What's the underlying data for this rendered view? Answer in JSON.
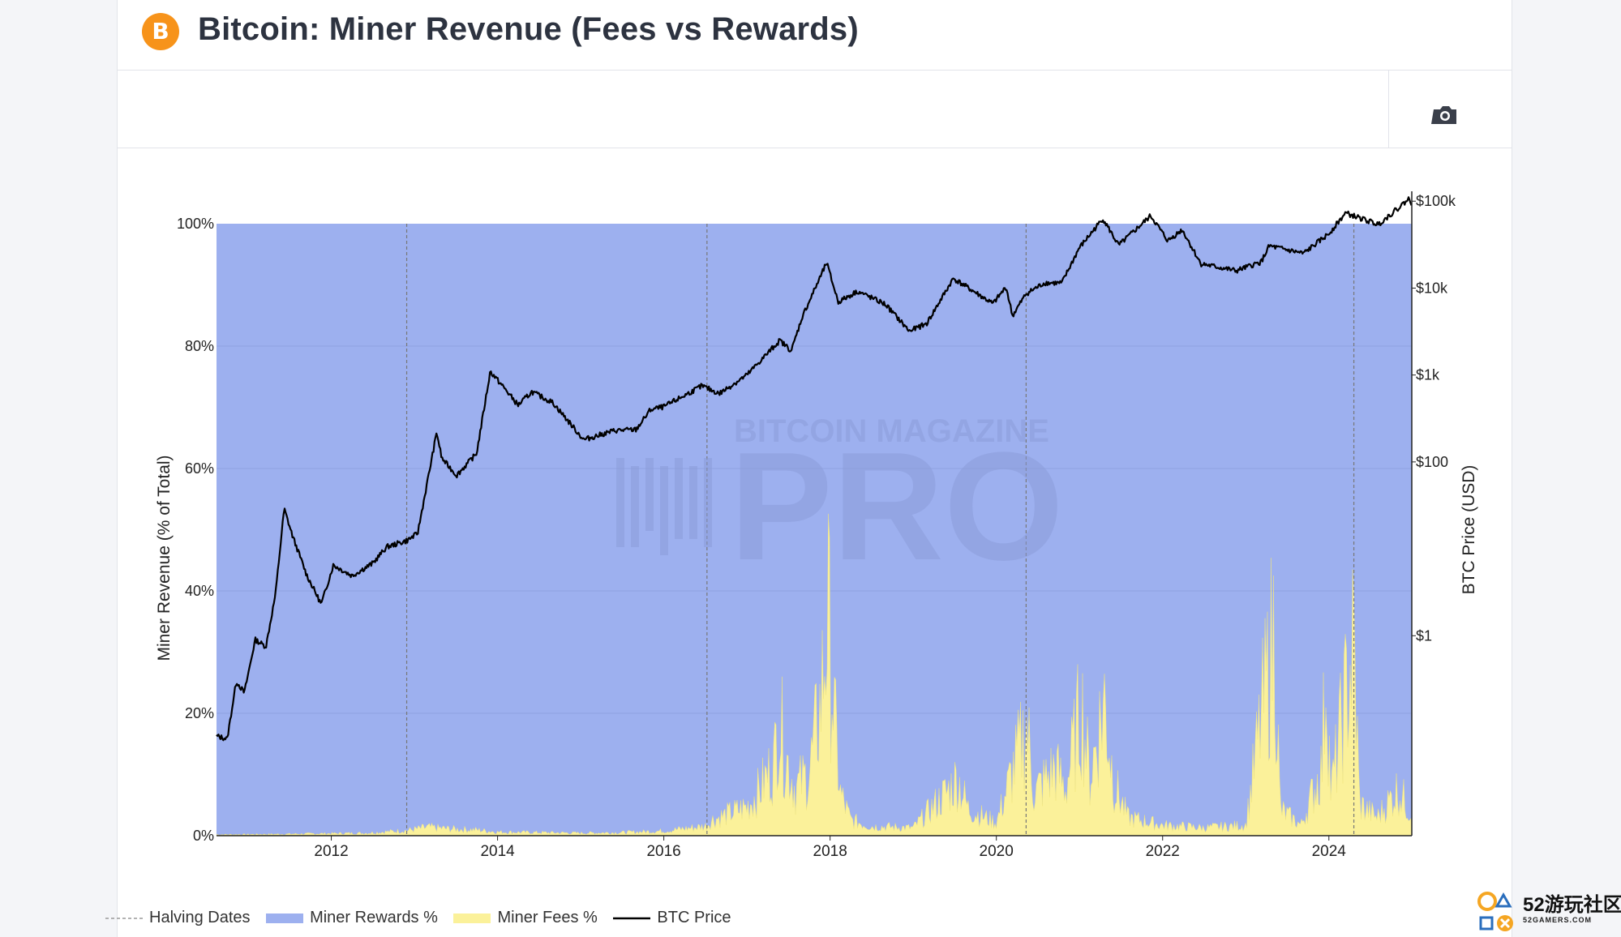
{
  "header": {
    "logo_symbol": "B",
    "title": "Bitcoin: Miner Revenue (Fees vs Rewards)"
  },
  "toolbar": {
    "camera_icon": "camera-icon"
  },
  "colors": {
    "rewards": "#9db0ef",
    "fees": "#fbf19a",
    "price": "#000000",
    "halving": "#777777",
    "brand": "#f7931a"
  },
  "chart_data": {
    "type": "area",
    "xlabel": "",
    "ylabel_left": "Miner Revenue (% of Total)",
    "ylabel_right": "BTC Price (USD)",
    "x_range": [
      "2010-08-15",
      "2024-12-31"
    ],
    "y_left_range": [
      0,
      100
    ],
    "y_right_log_range": [
      0.005,
      130000
    ],
    "x_ticks": [
      "2012",
      "2014",
      "2016",
      "2018",
      "2020",
      "2022",
      "2024"
    ],
    "y_left_ticks": [
      "0%",
      "20%",
      "40%",
      "60%",
      "80%",
      "100%"
    ],
    "y_right_ticks": [
      {
        "label": "$1",
        "value": 1
      },
      {
        "label": "$100",
        "value": 100
      },
      {
        "label": "$1k",
        "value": 1000
      },
      {
        "label": "$10k",
        "value": 10000
      },
      {
        "label": "$100k",
        "value": 100000
      }
    ],
    "halving_dates": [
      "2012-11-28",
      "2016-07-09",
      "2020-05-11",
      "2024-04-20"
    ],
    "legend": [
      "Halving Dates",
      "Miner Rewards %",
      "Miner Fees %",
      "BTC Price"
    ],
    "series": [
      {
        "name": "Miner Fees %",
        "note_points": "approximate date, percent",
        "points": [
          [
            "2010-08-15",
            0.2
          ],
          [
            "2011-06-01",
            0.3
          ],
          [
            "2012-06-01",
            0.5
          ],
          [
            "2012-12-01",
            1.0
          ],
          [
            "2013-03-01",
            1.6
          ],
          [
            "2013-06-01",
            1.3
          ],
          [
            "2013-10-01",
            1.1
          ],
          [
            "2014-01-01",
            0.7
          ],
          [
            "2015-01-01",
            0.5
          ],
          [
            "2015-07-01",
            0.6
          ],
          [
            "2016-01-01",
            0.9
          ],
          [
            "2016-07-01",
            1.8
          ],
          [
            "2016-08-01",
            3.0
          ],
          [
            "2017-01-01",
            5.5
          ],
          [
            "2017-03-01",
            9.0
          ],
          [
            "2017-05-01",
            14.0
          ],
          [
            "2017-05-20",
            24.0
          ],
          [
            "2017-06-15",
            16.0
          ],
          [
            "2017-08-01",
            9.0
          ],
          [
            "2017-10-01",
            12.0
          ],
          [
            "2017-11-20",
            25.0
          ],
          [
            "2017-12-22",
            43.0
          ],
          [
            "2018-01-20",
            22.0
          ],
          [
            "2018-02-15",
            8.0
          ],
          [
            "2018-04-01",
            3.0
          ],
          [
            "2018-07-01",
            1.8
          ],
          [
            "2019-01-01",
            1.5
          ],
          [
            "2019-06-01",
            8.5
          ],
          [
            "2019-07-15",
            11.0
          ],
          [
            "2019-09-01",
            5.0
          ],
          [
            "2020-01-01",
            2.5
          ],
          [
            "2020-05-15",
            21.0
          ],
          [
            "2020-06-15",
            8.0
          ],
          [
            "2020-09-15",
            13.0
          ],
          [
            "2020-11-01",
            9.0
          ],
          [
            "2021-01-10",
            25.0
          ],
          [
            "2021-02-15",
            11.0
          ],
          [
            "2021-04-20",
            26.0
          ],
          [
            "2021-06-01",
            10.0
          ],
          [
            "2021-08-01",
            3.5
          ],
          [
            "2022-01-01",
            2.0
          ],
          [
            "2022-07-01",
            1.5
          ],
          [
            "2023-01-01",
            2.0
          ],
          [
            "2023-05-08",
            40.0
          ],
          [
            "2023-06-01",
            5.0
          ],
          [
            "2023-09-01",
            2.0
          ],
          [
            "2023-12-01",
            13.0
          ],
          [
            "2023-12-20",
            34.0
          ],
          [
            "2024-01-10",
            8.0
          ],
          [
            "2024-04-20",
            37.0
          ],
          [
            "2024-05-15",
            6.0
          ],
          [
            "2024-08-01",
            3.5
          ],
          [
            "2024-11-01",
            9.0
          ],
          [
            "2024-12-31",
            4.0
          ]
        ]
      },
      {
        "name": "Miner Rewards %",
        "note_points": "complement of fees, 100 - fees"
      },
      {
        "name": "BTC Price",
        "note_points": "approximate date, USD (log scale)",
        "points": [
          [
            "2010-08-15",
            0.07
          ],
          [
            "2010-10-01",
            0.065
          ],
          [
            "2010-11-10",
            0.3
          ],
          [
            "2010-12-15",
            0.22
          ],
          [
            "2011-02-01",
            0.9
          ],
          [
            "2011-03-20",
            0.75
          ],
          [
            "2011-05-01",
            3.0
          ],
          [
            "2011-06-08",
            29.0
          ],
          [
            "2011-07-15",
            14.0
          ],
          [
            "2011-09-15",
            5.0
          ],
          [
            "2011-11-18",
            2.3
          ],
          [
            "2012-01-10",
            6.5
          ],
          [
            "2012-04-01",
            4.9
          ],
          [
            "2012-07-01",
            6.8
          ],
          [
            "2012-09-01",
            10.5
          ],
          [
            "2012-11-28",
            12.4
          ],
          [
            "2013-01-15",
            15.0
          ],
          [
            "2013-04-09",
            220.0
          ],
          [
            "2013-05-01",
            110.0
          ],
          [
            "2013-07-05",
            70.0
          ],
          [
            "2013-10-01",
            125.0
          ],
          [
            "2013-11-30",
            1100.0
          ],
          [
            "2014-02-01",
            700.0
          ],
          [
            "2014-04-01",
            450.0
          ],
          [
            "2014-06-01",
            640.0
          ],
          [
            "2014-09-01",
            480.0
          ],
          [
            "2015-01-14",
            180.0
          ],
          [
            "2015-06-01",
            230.0
          ],
          [
            "2015-09-01",
            235.0
          ],
          [
            "2015-11-04",
            400.0
          ],
          [
            "2016-01-01",
            430.0
          ],
          [
            "2016-06-17",
            750.0
          ],
          [
            "2016-09-01",
            610.0
          ],
          [
            "2017-01-01",
            1000.0
          ],
          [
            "2017-05-25",
            2500.0
          ],
          [
            "2017-07-15",
            1900.0
          ],
          [
            "2017-09-01",
            4700.0
          ],
          [
            "2017-12-17",
            19500.0
          ],
          [
            "2018-02-06",
            6900.0
          ],
          [
            "2018-05-01",
            9200.0
          ],
          [
            "2018-09-01",
            6500.0
          ],
          [
            "2018-12-15",
            3200.0
          ],
          [
            "2019-03-01",
            3900.0
          ],
          [
            "2019-06-26",
            12900.0
          ],
          [
            "2019-09-01",
            10000.0
          ],
          [
            "2019-12-17",
            6600.0
          ],
          [
            "2020-02-13",
            10300.0
          ],
          [
            "2020-03-12",
            4800.0
          ],
          [
            "2020-05-11",
            8600.0
          ],
          [
            "2020-08-01",
            11500.0
          ],
          [
            "2020-10-15",
            11400.0
          ],
          [
            "2020-12-31",
            29000.0
          ],
          [
            "2021-04-14",
            63000.0
          ],
          [
            "2021-06-22",
            31000.0
          ],
          [
            "2021-11-10",
            68000.0
          ],
          [
            "2022-01-24",
            35000.0
          ],
          [
            "2022-03-28",
            47000.0
          ],
          [
            "2022-06-18",
            19000.0
          ],
          [
            "2022-11-21",
            15800.0
          ],
          [
            "2023-03-10",
            20000.0
          ],
          [
            "2023-04-14",
            30500.0
          ],
          [
            "2023-09-11",
            25000.0
          ],
          [
            "2023-12-31",
            42000.0
          ],
          [
            "2024-03-14",
            73000.0
          ],
          [
            "2024-08-05",
            54000.0
          ],
          [
            "2024-11-12",
            88000.0
          ],
          [
            "2024-12-17",
            106000.0
          ],
          [
            "2024-12-31",
            93000.0
          ]
        ]
      }
    ],
    "watermark": "BITCOIN MAGAZINE PRO"
  },
  "corner_mark": {
    "line1": "52游玩社区",
    "line2": "52GAMERS.COM"
  }
}
